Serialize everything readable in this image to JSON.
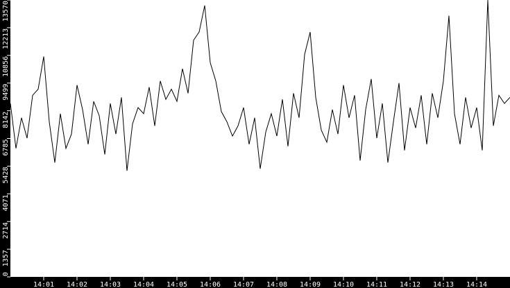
{
  "chart_data": {
    "type": "line",
    "title": "",
    "xlabel": "",
    "ylabel": "",
    "ylim": [
      0,
      13570
    ],
    "xlim": [
      "14:00:00",
      "14:15:00"
    ],
    "grid": false,
    "y_ticks": [
      "0",
      "1357",
      "2714",
      "4071",
      "5428",
      "6785",
      "8142",
      "9499",
      "10856",
      "12213",
      "13570"
    ],
    "x_ticks": [
      "14:01",
      "14:02",
      "14:03",
      "14:04",
      "14:05",
      "14:06",
      "14:07",
      "14:08",
      "14:09",
      "14:10",
      "14:11",
      "14:12",
      "14:13",
      "14:14"
    ],
    "colors": {
      "background": "#ffffff",
      "axis": "#000000",
      "line": "#000000",
      "tick_text": "#ffffff"
    },
    "series": [
      {
        "x": [
          "14:00:00",
          "14:00:10",
          "14:00:20",
          "14:00:30",
          "14:00:40",
          "14:00:50",
          "14:01:00",
          "14:01:10",
          "14:01:20",
          "14:01:30",
          "14:01:40",
          "14:01:50",
          "14:02:00",
          "14:02:10",
          "14:02:20",
          "14:02:30",
          "14:02:40",
          "14:02:50",
          "14:03:00",
          "14:03:10",
          "14:03:20",
          "14:03:30",
          "14:03:40",
          "14:03:50",
          "14:04:00",
          "14:04:10",
          "14:04:20",
          "14:04:30",
          "14:04:40",
          "14:04:50",
          "14:05:00",
          "14:05:10",
          "14:05:20",
          "14:05:30",
          "14:05:40",
          "14:05:50",
          "14:06:00",
          "14:06:10",
          "14:06:20",
          "14:06:30",
          "14:06:40",
          "14:06:50",
          "14:07:00",
          "14:07:10",
          "14:07:20",
          "14:07:30",
          "14:07:40",
          "14:07:50",
          "14:08:00",
          "14:08:10",
          "14:08:20",
          "14:08:30",
          "14:08:40",
          "14:08:50",
          "14:09:00",
          "14:09:10",
          "14:09:20",
          "14:09:30",
          "14:09:40",
          "14:09:50",
          "14:10:00",
          "14:10:10",
          "14:10:20",
          "14:10:30",
          "14:10:40",
          "14:10:50",
          "14:11:00",
          "14:11:10",
          "14:11:20",
          "14:11:30",
          "14:11:40",
          "14:11:50",
          "14:12:00",
          "14:12:10",
          "14:12:20",
          "14:12:30",
          "14:12:40",
          "14:12:50",
          "14:13:00",
          "14:13:10",
          "14:13:20",
          "14:13:30",
          "14:13:40",
          "14:13:50",
          "14:14:00",
          "14:14:10",
          "14:14:20",
          "14:14:30",
          "14:14:40",
          "14:14:50",
          "14:15:00"
        ],
        "values": [
          8500,
          6300,
          7800,
          6800,
          8900,
          9200,
          10800,
          7600,
          5600,
          8000,
          6300,
          7000,
          9400,
          8200,
          6500,
          8600,
          7900,
          6000,
          8500,
          7000,
          8800,
          5200,
          7500,
          8300,
          8000,
          9300,
          7400,
          9600,
          8700,
          9200,
          8600,
          10200,
          9000,
          11600,
          12000,
          13300,
          10500,
          9600,
          8100,
          7600,
          6900,
          7400,
          8300,
          6500,
          7800,
          5300,
          7100,
          8000,
          6900,
          8700,
          6400,
          9000,
          7800,
          10900,
          12000,
          8800,
          7200,
          6600,
          8200,
          7000,
          9400,
          7800,
          8900,
          5700,
          8200,
          9700,
          6800,
          8500,
          5600,
          7600,
          9500,
          6200,
          8300,
          7300,
          8900,
          6500,
          9000,
          7800,
          9600,
          12800,
          8000,
          6500,
          8800,
          7300,
          8300,
          6200,
          13570,
          7400,
          8900,
          8500,
          8800
        ]
      }
    ]
  }
}
